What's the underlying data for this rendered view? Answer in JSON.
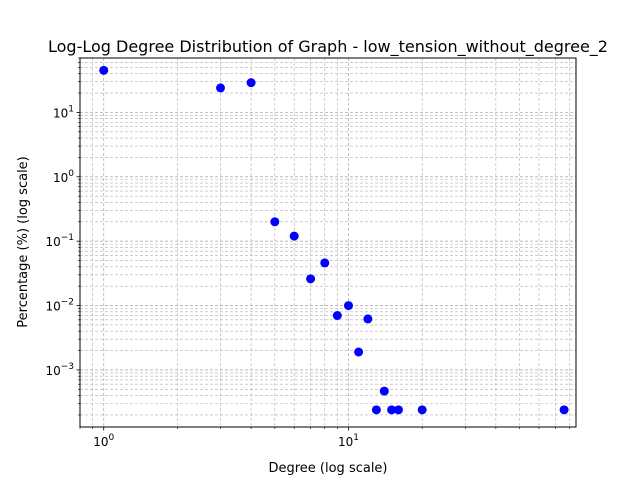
{
  "chart_data": {
    "type": "scatter",
    "title": "Log-Log Degree Distribution of Graph - low_tension_without_degree_2",
    "xlabel": "Degree (log scale)",
    "ylabel": "Percentage (%) (log scale)",
    "xscale": "log",
    "yscale": "log",
    "xlim": [
      0.8,
      85
    ],
    "ylim": [
      0.00013,
      70
    ],
    "grid": true,
    "marker_color": "#0000ff",
    "x_ticks": [
      {
        "base": "10",
        "exp": "0",
        "value": 1
      },
      {
        "base": "10",
        "exp": "1",
        "value": 10
      }
    ],
    "y_ticks": [
      {
        "base": "10",
        "exp": "−3",
        "value": 0.001
      },
      {
        "base": "10",
        "exp": "−2",
        "value": 0.01
      },
      {
        "base": "10",
        "exp": "−1",
        "value": 0.1
      },
      {
        "base": "10",
        "exp": "0",
        "value": 1
      },
      {
        "base": "10",
        "exp": "1",
        "value": 10
      }
    ],
    "points": [
      {
        "x": 1,
        "y": 45
      },
      {
        "x": 3,
        "y": 24
      },
      {
        "x": 4,
        "y": 29
      },
      {
        "x": 5,
        "y": 0.2
      },
      {
        "x": 6,
        "y": 0.12
      },
      {
        "x": 7,
        "y": 0.026
      },
      {
        "x": 8,
        "y": 0.046
      },
      {
        "x": 9,
        "y": 0.007
      },
      {
        "x": 10,
        "y": 0.01
      },
      {
        "x": 11,
        "y": 0.0019
      },
      {
        "x": 12,
        "y": 0.0062
      },
      {
        "x": 13,
        "y": 0.00024
      },
      {
        "x": 14,
        "y": 0.00047
      },
      {
        "x": 15,
        "y": 0.00024
      },
      {
        "x": 16,
        "y": 0.00024
      },
      {
        "x": 20,
        "y": 0.00024
      },
      {
        "x": 76,
        "y": 0.00024
      }
    ]
  }
}
